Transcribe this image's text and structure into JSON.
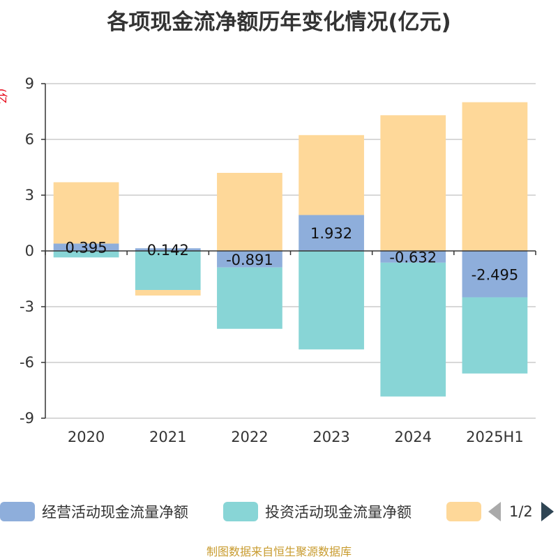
{
  "title": "各项现金流净额历年变化情况(亿元)",
  "ylabel": "(亿元)",
  "colors": {
    "operating": "#8eaedb",
    "investing": "#88d5d6",
    "financing": "#fed899"
  },
  "legend": {
    "items": [
      {
        "label": "经营活动现金流量净额",
        "color": "#8eaedb"
      },
      {
        "label": "投资活动现金流量净额",
        "color": "#88d5d6"
      },
      {
        "label": "",
        "color": "#fed899"
      }
    ],
    "page": "1/2"
  },
  "source": "制图数据来自恒生聚源数据库",
  "chart_data": {
    "type": "bar",
    "stacked": true,
    "categories": [
      "2020",
      "2021",
      "2022",
      "2023",
      "2024",
      "2025H1"
    ],
    "ylim": [
      -9,
      9
    ],
    "yticks": [
      9,
      6,
      3,
      0,
      -3,
      -6,
      -9
    ],
    "grid": true,
    "series": [
      {
        "name": "经营活动现金流量净额",
        "values": [
          0.395,
          0.142,
          -0.891,
          1.932,
          -0.632,
          -2.495
        ],
        "labels": [
          "0.395",
          "0.142",
          "-0.891",
          "1.932",
          "-0.632",
          "-2.495"
        ]
      },
      {
        "name": "投资活动现金流量净额",
        "values": [
          -0.35,
          -2.1,
          -3.3,
          -5.3,
          -7.2,
          -4.1
        ]
      },
      {
        "name": "",
        "values": [
          3.3,
          -0.3,
          4.2,
          4.3,
          7.3,
          8.0
        ]
      }
    ]
  }
}
